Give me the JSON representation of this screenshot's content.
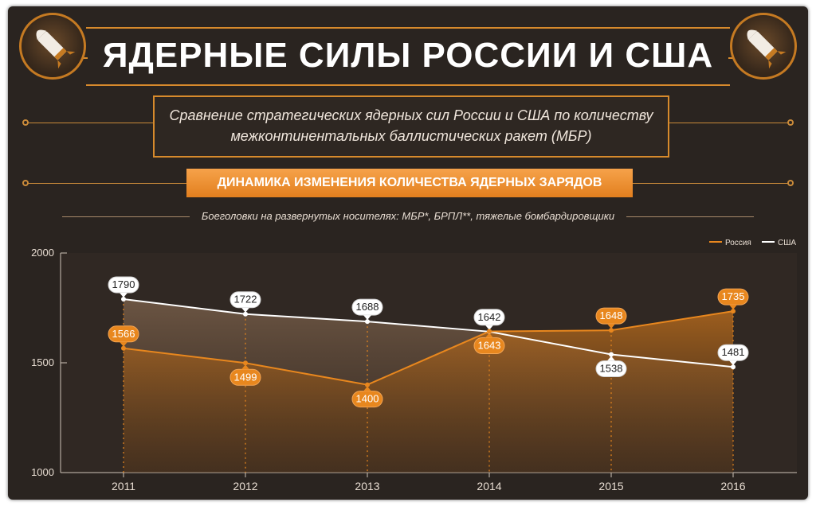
{
  "header": {
    "title": "ЯДЕРНЫЕ СИЛЫ РОССИИ И США",
    "subtitle_line1": "Сравнение стратегических ядерных сил России и США по количеству",
    "subtitle_line2": "межконтинентальных баллистических ракет (МБР)",
    "section_title": "ДИНАМИКА ИЗМЕНЕНИЯ КОЛИЧЕСТВА ЯДЕРНЫХ ЗАРЯДОВ",
    "chart_subtitle": "Боеголовки на развернутых носителях: МБР*, БРПЛ**, тяжелые бомбардировщики"
  },
  "icons": {
    "left_badge": "missile-icon",
    "right_badge": "missile-icon"
  },
  "colors": {
    "background": "#2a2420",
    "accent": "#e8871e",
    "russia": "#e8871e",
    "usa": "#ffffff"
  },
  "chart_data": {
    "type": "area",
    "categories": [
      "2011",
      "2012",
      "2013",
      "2014",
      "2015",
      "2016"
    ],
    "series": [
      {
        "name": "Россия",
        "values": [
          1566,
          1499,
          1400,
          1643,
          1648,
          1735
        ],
        "color": "#e8871e"
      },
      {
        "name": "США",
        "values": [
          1790,
          1722,
          1688,
          1642,
          1538,
          1481
        ],
        "color": "#ffffff"
      }
    ],
    "yticks": [
      1000,
      1500,
      2000
    ],
    "ylim": [
      1000,
      2000
    ],
    "title": "",
    "xlabel": "",
    "ylabel": "",
    "grid": false,
    "legend": "top-right"
  }
}
